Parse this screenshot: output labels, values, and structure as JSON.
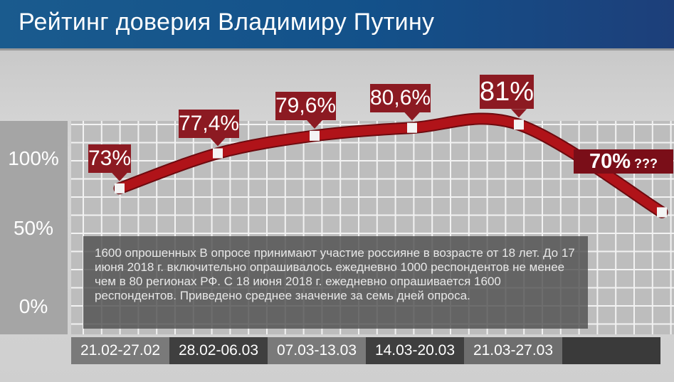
{
  "header": {
    "title": "Рейтинг доверия Владимиру Путину"
  },
  "chart_data": {
    "type": "line",
    "title": "Рейтинг доверия Владимиру Путину",
    "categories": [
      "21.02-27.02",
      "28.02-06.03",
      "07.03-13.03",
      "14.03-20.03",
      "21.03-27.03",
      ""
    ],
    "values": [
      73,
      77.4,
      79.6,
      80.6,
      81,
      70
    ],
    "data_labels": [
      "73%",
      "77,4%",
      "79,6%",
      "80,6%",
      "81%",
      "70%"
    ],
    "last_label_suffix": "???",
    "y_ticks": [
      "100%",
      "50%",
      "0%"
    ],
    "grid": true,
    "colors": {
      "line": "#b01319",
      "label_bg": "#8c1a22"
    }
  },
  "note": "1600 опрошенных В опросе принимают участие россияне в возрасте от 18 лет. До 17 июня 2018 г. включительно опрашивалось ежедневно 1000 респондентов не менее чем в 80 регионах РФ. С 18 июня 2018 г. ежедневно опрашивается 1600 респондентов. Приведено среднее значение за семь дней опроса."
}
